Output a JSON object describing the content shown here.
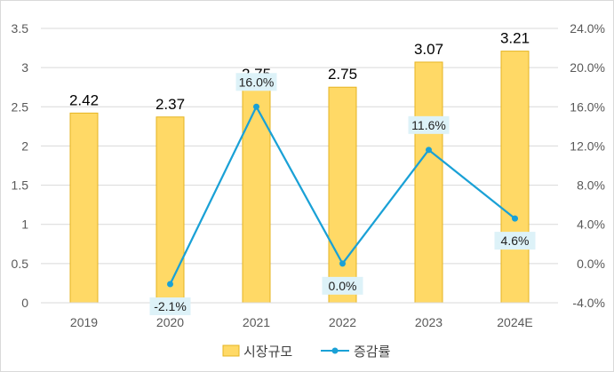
{
  "chart_data": {
    "type": "bar",
    "categories": [
      "2019",
      "2020",
      "2021",
      "2022",
      "2023",
      "2024E"
    ],
    "series": [
      {
        "name": "시장규모",
        "type": "bar",
        "axis": "left",
        "values": [
          2.42,
          2.37,
          2.75,
          2.75,
          3.07,
          3.21
        ],
        "labels": [
          "2.42",
          "2.37",
          "2.75",
          "2.75",
          "3.07",
          "3.21"
        ],
        "color": "#FFD966",
        "border": "#E6B422"
      },
      {
        "name": "증감률",
        "type": "line",
        "axis": "right",
        "values": [
          null,
          -2.1,
          16.0,
          0.0,
          11.6,
          4.6
        ],
        "labels": [
          "",
          "-2.1%",
          "16.0%",
          "0.0%",
          "11.6%",
          "4.6%"
        ],
        "color": "#1AA1D6",
        "label_bg": "#DDF2F8"
      }
    ],
    "y_left": {
      "ylim": [
        0,
        3.5
      ],
      "ticks": [
        "0",
        "0.5",
        "1",
        "1.5",
        "2",
        "2.5",
        "3",
        "3.5"
      ]
    },
    "y_right": {
      "ylim": [
        -4,
        24
      ],
      "ticks": [
        "-4.0%",
        "0.0%",
        "4.0%",
        "8.0%",
        "12.0%",
        "16.0%",
        "20.0%",
        "24.0%"
      ]
    },
    "grid": true,
    "legend": "bottom",
    "title": "",
    "xlabel": "",
    "ylabel": ""
  }
}
